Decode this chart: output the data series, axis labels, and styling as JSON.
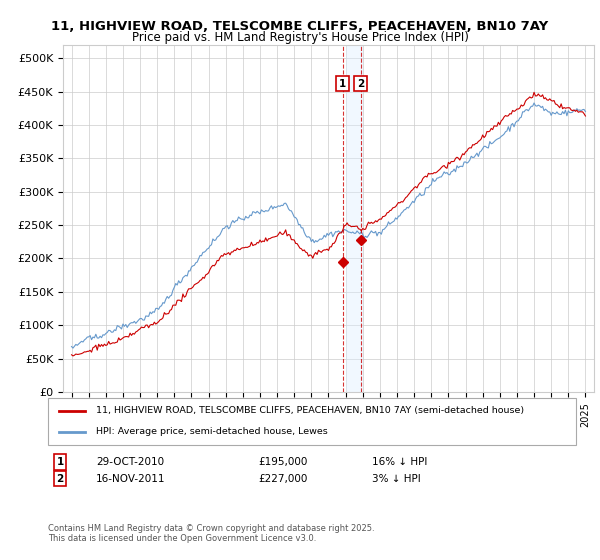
{
  "title": "11, HIGHVIEW ROAD, TELSCOMBE CLIFFS, PEACEHAVEN, BN10 7AY",
  "subtitle": "Price paid vs. HM Land Registry's House Price Index (HPI)",
  "red_label": "11, HIGHVIEW ROAD, TELSCOMBE CLIFFS, PEACEHAVEN, BN10 7AY (semi-detached house)",
  "blue_label": "HPI: Average price, semi-detached house, Lewes",
  "footer": "Contains HM Land Registry data © Crown copyright and database right 2025.\nThis data is licensed under the Open Government Licence v3.0.",
  "transactions": [
    {
      "num": 1,
      "date": "29-OCT-2010",
      "price": "£195,000",
      "hpi": "16% ↓ HPI",
      "x": 2010.83
    },
    {
      "num": 2,
      "date": "16-NOV-2011",
      "price": "£227,000",
      "hpi": "3% ↓ HPI",
      "x": 2011.88
    }
  ],
  "trans_prices": [
    195000,
    227000
  ],
  "ylim": [
    0,
    520000
  ],
  "yticks": [
    0,
    50000,
    100000,
    150000,
    200000,
    250000,
    300000,
    350000,
    400000,
    450000,
    500000
  ],
  "ytick_labels": [
    "£0",
    "£50K",
    "£100K",
    "£150K",
    "£200K",
    "£250K",
    "£300K",
    "£350K",
    "£400K",
    "£450K",
    "£500K"
  ],
  "xlim": [
    1994.5,
    2025.5
  ],
  "xticks": [
    1995,
    1996,
    1997,
    1998,
    1999,
    2000,
    2001,
    2002,
    2003,
    2004,
    2005,
    2006,
    2007,
    2008,
    2009,
    2010,
    2011,
    2012,
    2013,
    2014,
    2015,
    2016,
    2017,
    2018,
    2019,
    2020,
    2021,
    2022,
    2023,
    2024,
    2025
  ],
  "red_color": "#cc0000",
  "blue_color": "#6699cc",
  "box_color": "#cc0000",
  "highlight_fill": "#ddeeff",
  "highlight_alpha": 0.4,
  "highlight_x1": 2011.0,
  "highlight_x2": 2012.0,
  "vline1_x": 2010.83,
  "vline2_x": 2011.88
}
